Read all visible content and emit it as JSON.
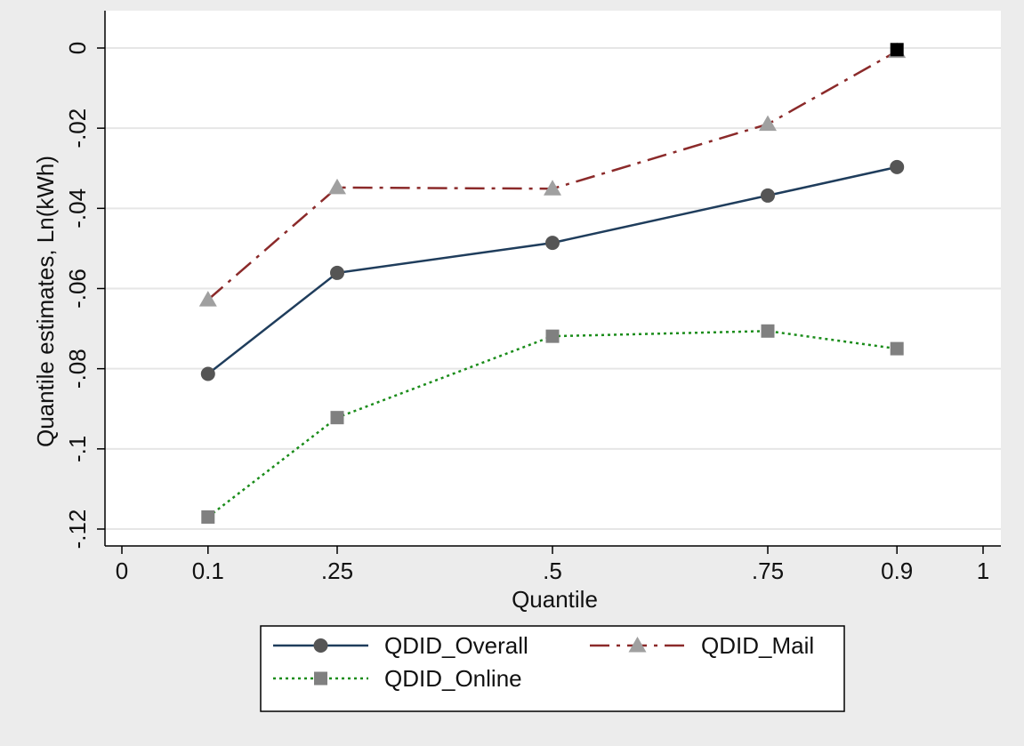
{
  "chart_data": {
    "type": "line",
    "xlabel": "Quantile",
    "ylabel": "Quantile estimates, Ln(kWh)",
    "xlim": [
      0,
      1
    ],
    "ylim": [
      -0.12,
      0
    ],
    "x_ticks": [
      {
        "value": 0,
        "label": "0"
      },
      {
        "value": 0.1,
        "label": "0.1"
      },
      {
        "value": 0.25,
        "label": ".25"
      },
      {
        "value": 0.5,
        "label": ".5"
      },
      {
        "value": 0.75,
        "label": ".75"
      },
      {
        "value": 0.9,
        "label": "0.9"
      },
      {
        "value": 1,
        "label": "1"
      }
    ],
    "y_ticks": [
      {
        "value": 0,
        "label": "0"
      },
      {
        "value": -0.02,
        "label": "-.02"
      },
      {
        "value": -0.04,
        "label": "-.04"
      },
      {
        "value": -0.06,
        "label": "-.06"
      },
      {
        "value": -0.08,
        "label": "-.08"
      },
      {
        "value": -0.1,
        "label": "-.1"
      },
      {
        "value": -0.12,
        "label": "-.12"
      }
    ],
    "grid": true,
    "legend_position": "bottom",
    "x": [
      0.1,
      0.25,
      0.5,
      0.75,
      0.9
    ],
    "series": [
      {
        "name": "QDID_Overall",
        "values": [
          -0.0813,
          -0.0561,
          -0.0486,
          -0.0368,
          -0.0297
        ],
        "color": "#1f3d5c",
        "marker": "circle",
        "marker_color": "#555555",
        "line_style": "solid"
      },
      {
        "name": "QDID_Mail",
        "values": [
          -0.0628,
          -0.0348,
          -0.0351,
          -0.019,
          -0.0008
        ],
        "color": "#8b2a2a",
        "marker": "triangle",
        "marker_color": "#a0a0a0",
        "line_style": "dashdot"
      },
      {
        "name": "QDID_Online",
        "values": [
          -0.117,
          -0.0922,
          -0.0719,
          -0.0706,
          -0.075
        ],
        "color": "#1a8c1a",
        "marker": "square",
        "marker_color": "#808080",
        "line_style": "dotted"
      }
    ],
    "annotations": [
      {
        "type": "marker",
        "shape": "square",
        "x": 0.9,
        "y": -0.0004,
        "color": "#000000"
      }
    ]
  }
}
